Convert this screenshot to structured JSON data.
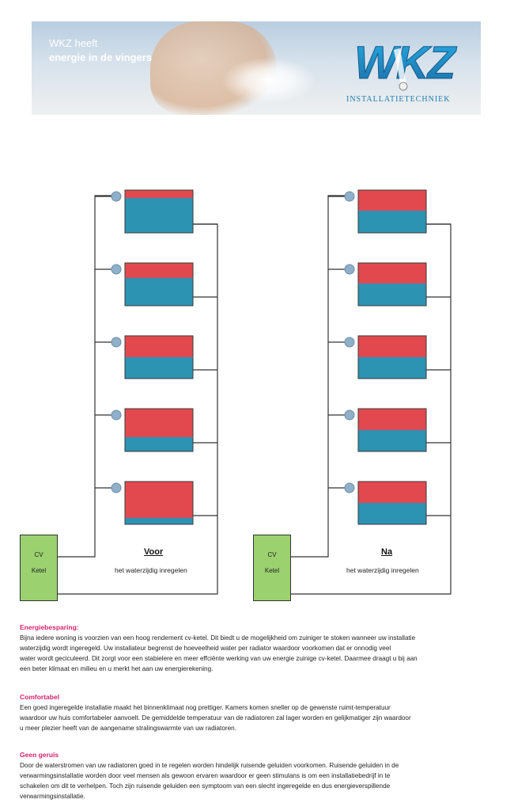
{
  "banner": {
    "slogan_line1": "WKZ heeft",
    "slogan_line2": "energie in de vingers",
    "logo_text": "WKZ",
    "logo_subtitle": "INSTALLATIETECHNIEK"
  },
  "diagram": {
    "before": {
      "ketel_line1": "CV",
      "ketel_line2": "Ketel",
      "title": "Voor",
      "subtitle": "het waterzijdig inregelen"
    },
    "after": {
      "ketel_line1": "CV",
      "ketel_line2": "Ketel",
      "title": "Na",
      "subtitle": "het waterzijdig inregelen"
    },
    "colors": {
      "hot": "#e2494f",
      "cold": "#2c93b3",
      "valve": "#8fb0c8",
      "ketel": "#9bd16f"
    },
    "before_red_fractions": [
      0.18,
      0.35,
      0.5,
      0.67,
      0.85
    ],
    "after_red_fractions": [
      0.48,
      0.48,
      0.5,
      0.5,
      0.5
    ]
  },
  "sections": [
    {
      "heading": "Energiebesparing:",
      "lines": [
        "Bijna iedere woning is voorzien van een hoog rendement cv-ketel. Dit biedt u de mogelijkheid om zuiniger te stoken wanneer uw installatie",
        "waterzijdig wordt ingeregeld. Uw installateur begrenst de hoeveelheid water per radiator waardoor voorkomen dat er onnodig veel",
        "water wordt geciculeerd. Dit zorgt voor een stabielere en meer effciënte werking van uw energie zuinige cv-ketel. Daarmee draagt u bij aan",
        "een beter klimaat en milieu en u merkt het aan uw energierekening."
      ]
    },
    {
      "heading": "Comfortabel",
      "lines": [
        "Een goed  ingeregelde installatie maakt het binnenklimaat nog prettiger. Kamers komen sneller op de gewenste ruimt-temperatuur",
        "waardoor uw huis comfortabeler aanvoelt. De gemiddelde temperatuur van de radiatoren zal lager worden en gelijkmatiger zijn waardoor",
        "u meer plezier heeft van de aangename stralingswarmte van uw radiatoren."
      ]
    },
    {
      "heading": "Geen geruis",
      "lines": [
        "Door de waterstromen van uw radiatoren goed in te regelen worden hindelijk ruisende geluiden voorkomen. Ruisende geluiden in de",
        "verwarmingsinstallatie worden door veel mensen als gewoon ervaren waardoor er geen stimulans is om een installatiebedrijf in te",
        "schakelen om dit te verhelpen. Toch zijn ruisende geluiden een symptoom van een slecht ingeregelde en dus energieverspillende",
        "verwarmingsinstallatie."
      ]
    }
  ]
}
